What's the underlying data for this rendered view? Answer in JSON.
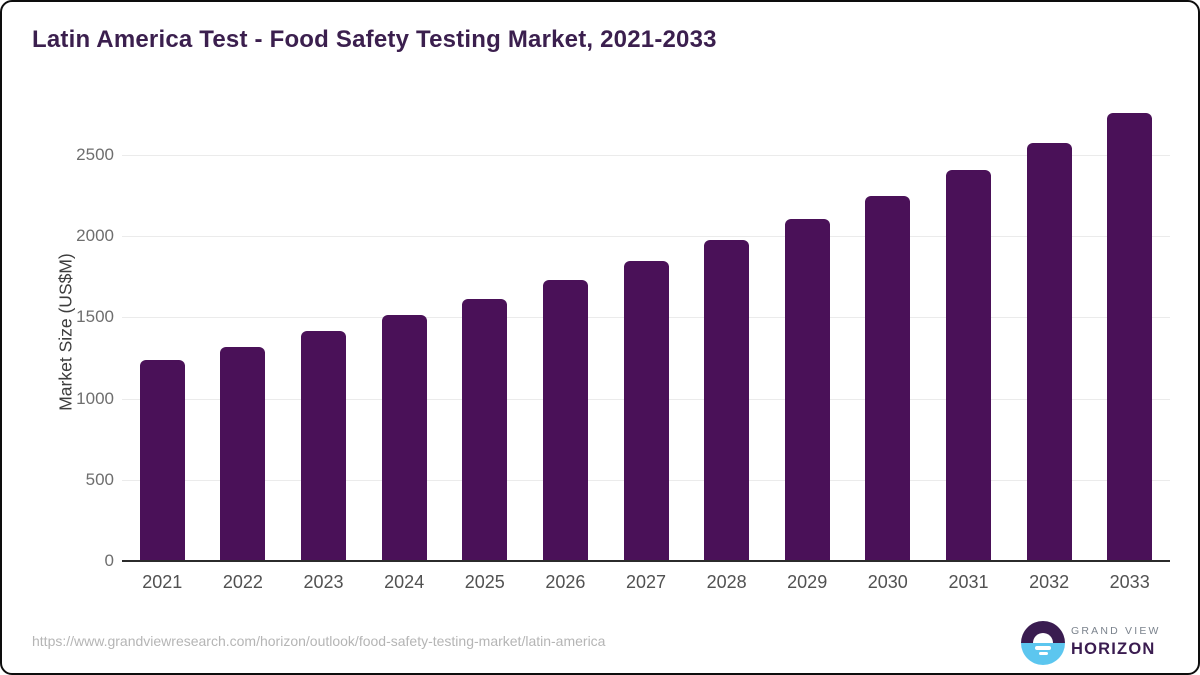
{
  "header": {
    "title": "Latin America Test - Food Safety Testing Market, 2021-2033",
    "title_color": "#3b1f4e"
  },
  "chart_data": {
    "type": "bar",
    "title": "Latin America Test - Food Safety Testing Market, 2021-2033",
    "categories": [
      "2021",
      "2022",
      "2023",
      "2024",
      "2025",
      "2026",
      "2027",
      "2028",
      "2029",
      "2030",
      "2031",
      "2032",
      "2033"
    ],
    "values": [
      1235,
      1320,
      1415,
      1515,
      1615,
      1730,
      1845,
      1975,
      2105,
      2250,
      2410,
      2575,
      2760
    ],
    "xlabel": "",
    "ylabel": "Market Size (US$M)",
    "ylim": [
      0,
      2800
    ],
    "yticks": [
      0,
      500,
      1000,
      1500,
      2000,
      2500
    ],
    "grid": true,
    "legend": false,
    "bar_color": "#4a1158",
    "gridline_color": "#ebebeb",
    "axis_line_color": "#2b2b2b",
    "tick_label_color": "#6e6e6e",
    "x_label_color": "#515151"
  },
  "footer": {
    "source_url": "https://www.grandviewresearch.com/horizon/outlook/food-safety-testing-market/latin-america",
    "logo": {
      "top_text": "GRAND VIEW",
      "bottom_text": "HORIZON",
      "purple": "#3a1c50",
      "blue": "#5cc6ef"
    }
  }
}
